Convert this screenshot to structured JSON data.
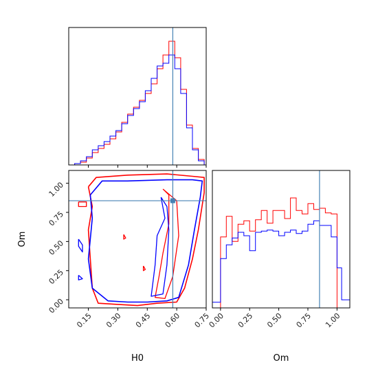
{
  "chart_data": [
    {
      "panel": "H0 marginal",
      "type": "histogram",
      "x_range": [
        0.05,
        0.75
      ],
      "bin_edges": [
        0.08,
        0.11,
        0.14,
        0.17,
        0.2,
        0.23,
        0.26,
        0.29,
        0.32,
        0.35,
        0.38,
        0.41,
        0.44,
        0.47,
        0.5,
        0.53,
        0.56,
        0.59,
        0.62,
        0.65,
        0.68,
        0.71,
        0.74
      ],
      "series": [
        {
          "color": "#ff0000",
          "values": [
            0.01,
            0.02,
            0.05,
            0.09,
            0.12,
            0.15,
            0.19,
            0.24,
            0.31,
            0.37,
            0.42,
            0.47,
            0.52,
            0.59,
            0.7,
            0.8,
            0.9,
            0.78,
            0.55,
            0.29,
            0.12,
            0.04
          ]
        },
        {
          "color": "#0000ff",
          "values": [
            0.01,
            0.03,
            0.06,
            0.11,
            0.14,
            0.17,
            0.21,
            0.25,
            0.3,
            0.36,
            0.41,
            0.46,
            0.54,
            0.63,
            0.72,
            0.74,
            0.8,
            0.7,
            0.52,
            0.27,
            0.11,
            0.03
          ]
        }
      ],
      "truth": 0.58,
      "ylim": [
        0,
        1
      ]
    },
    {
      "panel": "H0 vs Om joint",
      "type": "contour",
      "xlabel": "H0",
      "ylabel": "Om",
      "xlim": [
        0.05,
        0.75
      ],
      "ylim": [
        -0.07,
        1.11
      ],
      "xticks": [
        "0.15",
        "0.30",
        "0.45",
        "0.60",
        "0.75"
      ],
      "yticks": [
        "0.00",
        "0.25",
        "0.50",
        "0.75",
        "1.00"
      ],
      "contours": [
        {
          "color": "#ff0000",
          "points": [
            [
              0.15,
              0.97
            ],
            [
              0.19,
              1.05
            ],
            [
              0.35,
              1.07
            ],
            [
              0.55,
              1.08
            ],
            [
              0.68,
              1.06
            ],
            [
              0.74,
              1.05
            ],
            [
              0.74,
              0.92
            ],
            [
              0.71,
              0.6
            ],
            [
              0.68,
              0.35
            ],
            [
              0.64,
              0.1
            ],
            [
              0.6,
              -0.02
            ],
            [
              0.5,
              -0.03
            ],
            [
              0.4,
              -0.05
            ],
            [
              0.3,
              -0.04
            ],
            [
              0.2,
              -0.03
            ],
            [
              0.17,
              0.1
            ],
            [
              0.16,
              0.35
            ],
            [
              0.15,
              0.6
            ],
            [
              0.17,
              0.8
            ],
            [
              0.15,
              0.97
            ]
          ]
        },
        {
          "color": "#0000ff",
          "points": [
            [
              0.16,
              0.9
            ],
            [
              0.22,
              1.02
            ],
            [
              0.35,
              1.02
            ],
            [
              0.55,
              1.03
            ],
            [
              0.68,
              1.03
            ],
            [
              0.73,
              1.02
            ],
            [
              0.72,
              0.88
            ],
            [
              0.69,
              0.6
            ],
            [
              0.66,
              0.3
            ],
            [
              0.61,
              0.02
            ],
            [
              0.55,
              -0.01
            ],
            [
              0.45,
              -0.02
            ],
            [
              0.35,
              -0.02
            ],
            [
              0.25,
              -0.01
            ],
            [
              0.17,
              0.1
            ],
            [
              0.15,
              0.35
            ],
            [
              0.17,
              0.7
            ],
            [
              0.16,
              0.9
            ]
          ]
        },
        {
          "color": "#ff0000",
          "points": [
            [
              0.53,
              0.95
            ],
            [
              0.56,
              0.9
            ],
            [
              0.56,
              0.65
            ],
            [
              0.53,
              0.4
            ],
            [
              0.51,
              0.2
            ],
            [
              0.49,
              0.02
            ],
            [
              0.54,
              0.01
            ],
            [
              0.58,
              0.2
            ],
            [
              0.61,
              0.55
            ],
            [
              0.6,
              0.85
            ],
            [
              0.53,
              0.95
            ]
          ]
        },
        {
          "color": "#0000ff",
          "points": [
            [
              0.52,
              0.88
            ],
            [
              0.54,
              0.7
            ],
            [
              0.5,
              0.55
            ],
            [
              0.49,
              0.3
            ],
            [
              0.47,
              0.03
            ],
            [
              0.53,
              0.05
            ],
            [
              0.55,
              0.3
            ],
            [
              0.56,
              0.6
            ],
            [
              0.55,
              0.8
            ],
            [
              0.52,
              0.88
            ]
          ]
        },
        {
          "color": "#ff0000",
          "points": [
            [
              0.1,
              0.84
            ],
            [
              0.14,
              0.84
            ],
            [
              0.14,
              0.8
            ],
            [
              0.1,
              0.8
            ],
            [
              0.1,
              0.84
            ]
          ]
        },
        {
          "color": "#0000ff",
          "points": [
            [
              0.1,
              0.52
            ],
            [
              0.12,
              0.47
            ],
            [
              0.12,
              0.41
            ],
            [
              0.1,
              0.46
            ],
            [
              0.1,
              0.52
            ]
          ]
        },
        {
          "color": "#0000ff",
          "points": [
            [
              0.1,
              0.21
            ],
            [
              0.12,
              0.18
            ],
            [
              0.1,
              0.17
            ],
            [
              0.1,
              0.21
            ]
          ]
        },
        {
          "color": "#ff0000",
          "points": [
            [
              0.33,
              0.56
            ],
            [
              0.34,
              0.53
            ],
            [
              0.33,
              0.52
            ],
            [
              0.33,
              0.56
            ]
          ]
        },
        {
          "color": "#ff0000",
          "points": [
            [
              0.43,
              0.29
            ],
            [
              0.44,
              0.26
            ],
            [
              0.43,
              0.25
            ],
            [
              0.43,
              0.29
            ]
          ]
        }
      ],
      "truth_x": 0.58,
      "truth_y": 0.85
    },
    {
      "panel": "Om marginal",
      "type": "histogram",
      "xlabel": "Om",
      "x_range": [
        -0.07,
        1.11
      ],
      "xticks": [
        "0.00",
        "0.25",
        "0.50",
        "0.75",
        "1.00"
      ],
      "bin_edges": [
        -0.07,
        0.0,
        0.05,
        0.1,
        0.15,
        0.2,
        0.25,
        0.3,
        0.35,
        0.4,
        0.45,
        0.5,
        0.55,
        0.6,
        0.65,
        0.7,
        0.75,
        0.8,
        0.85,
        0.9,
        0.95,
        1.0,
        1.04,
        1.11
      ],
      "series": [
        {
          "color": "#ff0000",
          "values": [
            0,
            0.62,
            0.8,
            0.58,
            0.73,
            0.76,
            0.67,
            0.77,
            0.85,
            0.74,
            0.85,
            0.85,
            0.78,
            0.96,
            0.85,
            0.82,
            0.91,
            0.86,
            0.87,
            0.83,
            0.82,
            0,
            0
          ]
        },
        {
          "color": "#0000ff",
          "values": [
            0.05,
            0.43,
            0.55,
            0.61,
            0.66,
            0.63,
            0.5,
            0.66,
            0.67,
            0.68,
            0.67,
            0.63,
            0.66,
            0.68,
            0.65,
            0.67,
            0.73,
            0.76,
            0.72,
            0.72,
            0.62,
            0.35,
            0.07
          ]
        }
      ],
      "truth": 0.85,
      "ylim": [
        0,
        1.2
      ]
    }
  ]
}
